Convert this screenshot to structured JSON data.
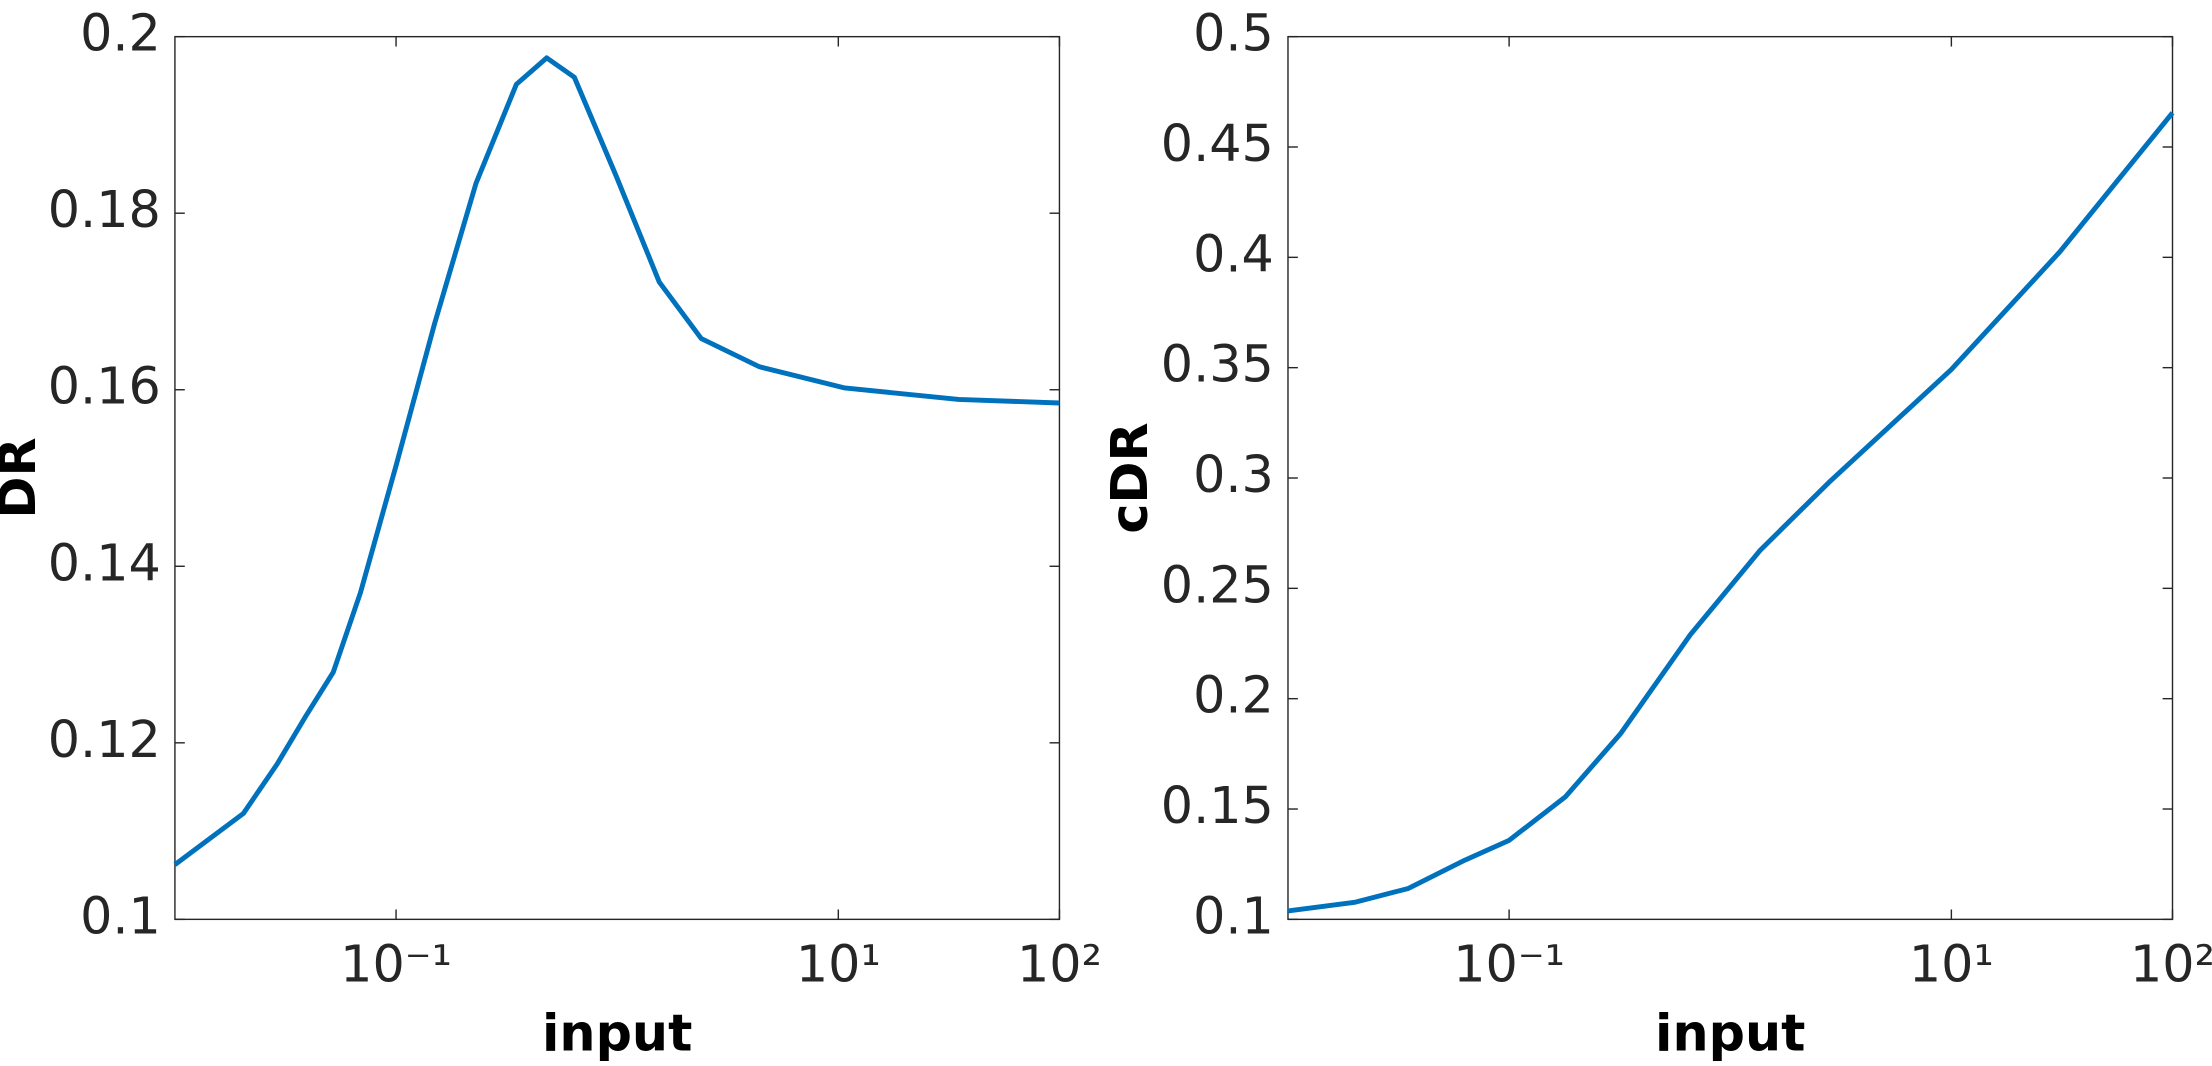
{
  "chart_data": [
    {
      "type": "line",
      "xlabel": "input",
      "ylabel": "DR",
      "xscale": "log",
      "xlim": [
        0.01,
        100
      ],
      "xticks": [
        {
          "value": 0.1,
          "label": "10⁻¹"
        },
        {
          "value": 10,
          "label": "10¹"
        },
        {
          "value": 100,
          "label": "10²"
        }
      ],
      "ylim": [
        0.1,
        0.2
      ],
      "yticks": [
        0.1,
        0.12,
        0.14,
        0.16,
        0.18,
        0.2
      ],
      "grid": false,
      "x": [
        0.01,
        0.0204,
        0.029,
        0.039,
        0.052,
        0.069,
        0.1,
        0.149,
        0.23,
        0.35,
        0.48,
        0.64,
        0.99,
        1.55,
        2.4,
        4.4,
        10.7,
        35,
        100
      ],
      "series": [
        {
          "color": "#0072bd",
          "values": [
            0.1062,
            0.112,
            0.1176,
            0.123,
            0.128,
            0.137,
            0.1514,
            0.1674,
            0.1834,
            0.1946,
            0.1976,
            0.1954,
            0.1842,
            0.1722,
            0.1658,
            0.1626,
            0.1602,
            0.1589,
            0.1585
          ]
        }
      ]
    },
    {
      "type": "line",
      "xlabel": "input",
      "ylabel": "cDR",
      "xscale": "log",
      "xlim": [
        0.01,
        100
      ],
      "xticks": [
        {
          "value": 0.1,
          "label": "10⁻¹"
        },
        {
          "value": 10,
          "label": "10¹"
        },
        {
          "value": 100,
          "label": "10²"
        }
      ],
      "ylim": [
        0.1,
        0.5
      ],
      "yticks": [
        0.1,
        0.15,
        0.2,
        0.25,
        0.3,
        0.35,
        0.4,
        0.45,
        0.5
      ],
      "grid": false,
      "x": [
        0.01,
        0.02,
        0.035,
        0.063,
        0.1,
        0.18,
        0.32,
        0.66,
        1.37,
        2.8,
        10,
        31,
        100
      ],
      "series": [
        {
          "color": "#0072bd",
          "values": [
            0.1038,
            0.1077,
            0.114,
            0.1268,
            0.1358,
            0.1556,
            0.1843,
            0.229,
            0.2674,
            0.2981,
            0.3492,
            0.4026,
            0.4655
          ]
        }
      ]
    }
  ]
}
